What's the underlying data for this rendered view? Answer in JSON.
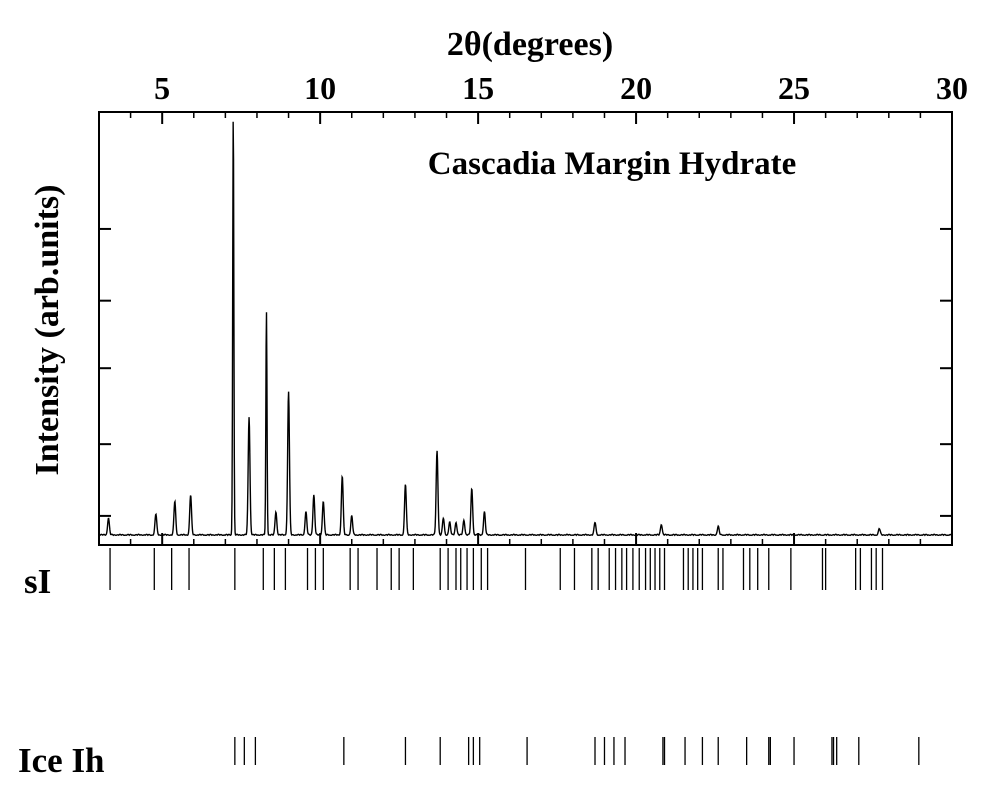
{
  "chart_data": {
    "type": "line",
    "title": "Cascadia Margin Hydrate",
    "xlabel": "2θ(degrees)",
    "ylabel": "Intensity (arb.units)",
    "xlim": [
      3,
      30
    ],
    "ylim": [
      0,
      100
    ],
    "x_ticks": [
      5,
      10,
      15,
      20,
      25,
      30
    ],
    "x_tick_labels": [
      "5",
      "10",
      "15",
      "20",
      "25",
      "30"
    ],
    "y_tick_values": [
      5,
      22,
      40,
      56,
      73
    ],
    "y_tick_labels_shown": false,
    "x_axis_position": "top",
    "grid": false,
    "line_color": "#000000",
    "baseline_intensity": 0.4,
    "peaks": [
      {
        "x": 3.3,
        "y": 4
      },
      {
        "x": 4.8,
        "y": 5
      },
      {
        "x": 5.4,
        "y": 8
      },
      {
        "x": 5.9,
        "y": 9.5
      },
      {
        "x": 7.25,
        "y": 100
      },
      {
        "x": 7.75,
        "y": 28
      },
      {
        "x": 8.3,
        "y": 53
      },
      {
        "x": 8.6,
        "y": 5.5
      },
      {
        "x": 9.0,
        "y": 34
      },
      {
        "x": 9.55,
        "y": 5.5
      },
      {
        "x": 9.8,
        "y": 9.5
      },
      {
        "x": 10.1,
        "y": 8
      },
      {
        "x": 10.7,
        "y": 14
      },
      {
        "x": 11.0,
        "y": 4.5
      },
      {
        "x": 12.7,
        "y": 12
      },
      {
        "x": 13.7,
        "y": 20
      },
      {
        "x": 13.9,
        "y": 4
      },
      {
        "x": 14.1,
        "y": 3
      },
      {
        "x": 14.3,
        "y": 3
      },
      {
        "x": 14.55,
        "y": 3.5
      },
      {
        "x": 14.8,
        "y": 11
      },
      {
        "x": 15.2,
        "y": 5.5
      },
      {
        "x": 18.7,
        "y": 3
      },
      {
        "x": 20.8,
        "y": 2.5
      },
      {
        "x": 22.6,
        "y": 2
      },
      {
        "x": 27.7,
        "y": 1.5
      }
    ],
    "reflection_rows": [
      {
        "label": "sI",
        "positions": [
          3.35,
          4.75,
          5.3,
          5.85,
          7.3,
          8.2,
          8.55,
          8.9,
          9.6,
          9.85,
          10.1,
          10.95,
          11.2,
          11.8,
          12.25,
          12.5,
          12.95,
          13.8,
          14.05,
          14.3,
          14.45,
          14.65,
          14.85,
          15.1,
          15.3,
          16.5,
          17.6,
          18.05,
          18.6,
          18.8,
          19.15,
          19.35,
          19.55,
          19.7,
          19.9,
          20.1,
          20.3,
          20.45,
          20.6,
          20.75,
          20.9,
          21.5,
          21.65,
          21.8,
          21.95,
          22.1,
          22.6,
          22.75,
          23.4,
          23.6,
          23.85,
          24.2,
          24.9,
          25.9,
          26.0,
          26.95,
          27.1,
          27.45,
          27.6,
          27.8
        ]
      },
      {
        "label": "Ice Ih",
        "positions": [
          7.3,
          7.6,
          7.95,
          10.75,
          12.7,
          13.8,
          14.7,
          14.85,
          15.05,
          16.55,
          18.7,
          19.0,
          19.3,
          19.65,
          20.85,
          20.9,
          21.55,
          22.1,
          22.6,
          23.5,
          24.2,
          24.25,
          25.0,
          26.2,
          26.25,
          26.35,
          27.05,
          28.95
        ]
      }
    ]
  }
}
